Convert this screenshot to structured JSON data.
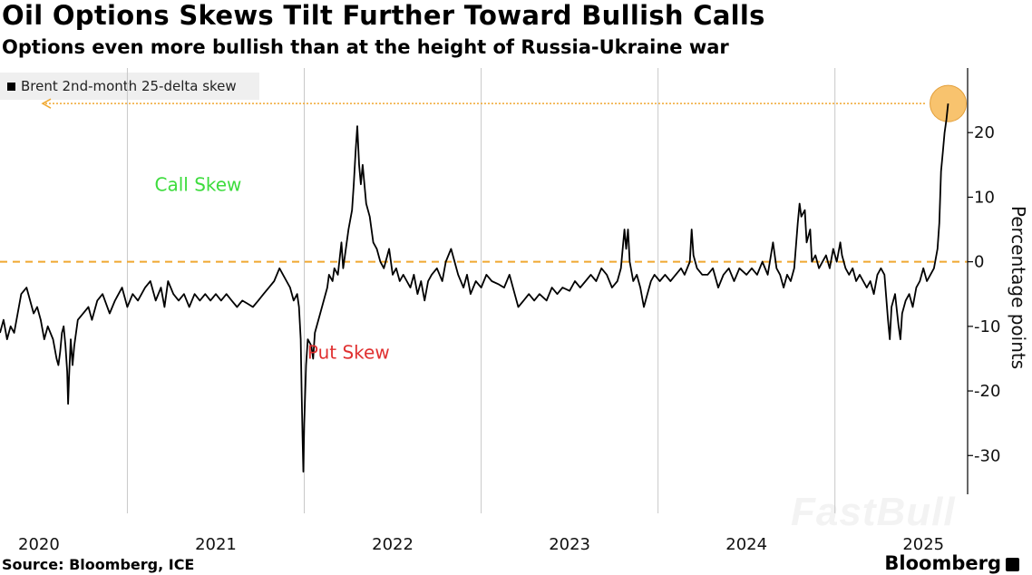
{
  "header": {
    "title": "Oil Options Skews Tilt Further Toward Bullish Calls",
    "subtitle": "Options even more bullish than at the height of Russia-Ukraine war"
  },
  "footer": {
    "source": "Source: Bloomberg, ICE",
    "brand": "Bloomberg"
  },
  "watermark": "FastBull",
  "colors": {
    "line": "#000000",
    "zero_line": "#f0a830",
    "highlight_circle": "#f7b955",
    "call_label": "#3ddc3d",
    "put_label": "#e03030",
    "grid": "#c8c8c8"
  },
  "chart_data": {
    "type": "line",
    "title": "Oil Options Skews Tilt Further Toward Bullish Calls",
    "subtitle": "Options even more bullish than at the height of Russia-Ukraine war",
    "xlabel": "",
    "ylabel": "Percentage points",
    "legend": "Brent 2nd-month 25-delta skew",
    "legend_position": "top-left",
    "xlim": [
      2019.78,
      2025.25
    ],
    "ylim": [
      -36,
      30
    ],
    "yticks": [
      20,
      10,
      0,
      -10,
      -20,
      -30
    ],
    "ytick_labels": [
      "20",
      "10",
      "0",
      "-10",
      "-20",
      "-30"
    ],
    "xticks": [
      2020,
      2021,
      2022,
      2023,
      2024,
      2025
    ],
    "xtick_labels": [
      "2020",
      "2021",
      "2022",
      "2023",
      "2024",
      "2025"
    ],
    "grid": "vertical",
    "reference_line": {
      "y": 0,
      "style": "dashed"
    },
    "annotations": [
      {
        "text": "Call Skew",
        "x": 2020.9,
        "y": 11,
        "color": "call"
      },
      {
        "text": "Put Skew",
        "x": 2021.75,
        "y": -15,
        "color": "put"
      },
      {
        "type": "highlight",
        "x": 2025.14,
        "y": 24.5
      }
    ],
    "series": [
      {
        "name": "Brent 2nd-month 25-delta skew",
        "points": [
          [
            2019.78,
            -11
          ],
          [
            2019.8,
            -9
          ],
          [
            2019.82,
            -12
          ],
          [
            2019.84,
            -10
          ],
          [
            2019.86,
            -11
          ],
          [
            2019.88,
            -8
          ],
          [
            2019.9,
            -5
          ],
          [
            2019.93,
            -4
          ],
          [
            2019.95,
            -6
          ],
          [
            2019.97,
            -8
          ],
          [
            2019.99,
            -7
          ],
          [
            2020.01,
            -9
          ],
          [
            2020.03,
            -12
          ],
          [
            2020.05,
            -10
          ],
          [
            2020.08,
            -12
          ],
          [
            2020.1,
            -15
          ],
          [
            2020.11,
            -16
          ],
          [
            2020.12,
            -14
          ],
          [
            2020.13,
            -11
          ],
          [
            2020.14,
            -10
          ],
          [
            2020.15,
            -13
          ],
          [
            2020.16,
            -17
          ],
          [
            2020.165,
            -22
          ],
          [
            2020.17,
            -18
          ],
          [
            2020.18,
            -12
          ],
          [
            2020.19,
            -16
          ],
          [
            2020.2,
            -13
          ],
          [
            2020.22,
            -9
          ],
          [
            2020.25,
            -8
          ],
          [
            2020.28,
            -7
          ],
          [
            2020.3,
            -9
          ],
          [
            2020.33,
            -6
          ],
          [
            2020.36,
            -5
          ],
          [
            2020.4,
            -8
          ],
          [
            2020.43,
            -6
          ],
          [
            2020.47,
            -4
          ],
          [
            2020.5,
            -7
          ],
          [
            2020.53,
            -5
          ],
          [
            2020.56,
            -6
          ],
          [
            2020.6,
            -4
          ],
          [
            2020.63,
            -3
          ],
          [
            2020.66,
            -6
          ],
          [
            2020.69,
            -4
          ],
          [
            2020.71,
            -7
          ],
          [
            2020.73,
            -3
          ],
          [
            2020.76,
            -5
          ],
          [
            2020.79,
            -6
          ],
          [
            2020.82,
            -5
          ],
          [
            2020.85,
            -7
          ],
          [
            2020.88,
            -5
          ],
          [
            2020.91,
            -6
          ],
          [
            2020.94,
            -5
          ],
          [
            2020.97,
            -6
          ],
          [
            2021.0,
            -5
          ],
          [
            2021.03,
            -6
          ],
          [
            2021.06,
            -5
          ],
          [
            2021.09,
            -6
          ],
          [
            2021.12,
            -7
          ],
          [
            2021.15,
            -6
          ],
          [
            2021.18,
            -6.5
          ],
          [
            2021.21,
            -7
          ],
          [
            2021.24,
            -6
          ],
          [
            2021.27,
            -5
          ],
          [
            2021.3,
            -4
          ],
          [
            2021.33,
            -3
          ],
          [
            2021.36,
            -1
          ],
          [
            2021.38,
            -2
          ],
          [
            2021.4,
            -3
          ],
          [
            2021.42,
            -4
          ],
          [
            2021.44,
            -6
          ],
          [
            2021.46,
            -5
          ],
          [
            2021.47,
            -7
          ],
          [
            2021.48,
            -12
          ],
          [
            2021.485,
            -20
          ],
          [
            2021.49,
            -27
          ],
          [
            2021.495,
            -32.5
          ],
          [
            2021.5,
            -25
          ],
          [
            2021.51,
            -16
          ],
          [
            2021.52,
            -12
          ],
          [
            2021.54,
            -13
          ],
          [
            2021.55,
            -15
          ],
          [
            2021.56,
            -11
          ],
          [
            2021.57,
            -10
          ],
          [
            2021.59,
            -8
          ],
          [
            2021.61,
            -6
          ],
          [
            2021.63,
            -4
          ],
          [
            2021.64,
            -2
          ],
          [
            2021.66,
            -3
          ],
          [
            2021.67,
            -1
          ],
          [
            2021.69,
            -2
          ],
          [
            2021.71,
            3
          ],
          [
            2021.72,
            -1
          ],
          [
            2021.73,
            1
          ],
          [
            2021.75,
            5
          ],
          [
            2021.77,
            8
          ],
          [
            2021.78,
            12
          ],
          [
            2021.79,
            17
          ],
          [
            2021.8,
            21
          ],
          [
            2021.81,
            15
          ],
          [
            2021.82,
            12
          ],
          [
            2021.83,
            15
          ],
          [
            2021.85,
            9
          ],
          [
            2021.87,
            7
          ],
          [
            2021.89,
            3
          ],
          [
            2021.91,
            2
          ],
          [
            2021.93,
            0
          ],
          [
            2021.95,
            -1
          ],
          [
            2021.97,
            1
          ],
          [
            2021.98,
            2
          ],
          [
            2022.0,
            -2
          ],
          [
            2022.02,
            -1
          ],
          [
            2022.04,
            -3
          ],
          [
            2022.06,
            -2
          ],
          [
            2022.08,
            -3
          ],
          [
            2022.1,
            -4
          ],
          [
            2022.12,
            -2
          ],
          [
            2022.14,
            -5
          ],
          [
            2022.16,
            -3
          ],
          [
            2022.18,
            -6
          ],
          [
            2022.2,
            -3
          ],
          [
            2022.22,
            -2
          ],
          [
            2022.25,
            -1
          ],
          [
            2022.28,
            -3
          ],
          [
            2022.3,
            0
          ],
          [
            2022.33,
            2
          ],
          [
            2022.35,
            0
          ],
          [
            2022.37,
            -2
          ],
          [
            2022.4,
            -4
          ],
          [
            2022.42,
            -2
          ],
          [
            2022.44,
            -5
          ],
          [
            2022.47,
            -3
          ],
          [
            2022.5,
            -4
          ],
          [
            2022.53,
            -2
          ],
          [
            2022.56,
            -3
          ],
          [
            2022.6,
            -3.5
          ],
          [
            2022.63,
            -4
          ],
          [
            2022.66,
            -2
          ],
          [
            2022.69,
            -5
          ],
          [
            2022.71,
            -7
          ],
          [
            2022.74,
            -6
          ],
          [
            2022.77,
            -5
          ],
          [
            2022.8,
            -6
          ],
          [
            2022.83,
            -5
          ],
          [
            2022.87,
            -6
          ],
          [
            2022.9,
            -4
          ],
          [
            2022.93,
            -5
          ],
          [
            2022.96,
            -4
          ],
          [
            2023.0,
            -4.5
          ],
          [
            2023.03,
            -3
          ],
          [
            2023.06,
            -4
          ],
          [
            2023.09,
            -3
          ],
          [
            2023.12,
            -2
          ],
          [
            2023.15,
            -3
          ],
          [
            2023.18,
            -1
          ],
          [
            2023.21,
            -2
          ],
          [
            2023.24,
            -4
          ],
          [
            2023.27,
            -3
          ],
          [
            2023.29,
            -1
          ],
          [
            2023.31,
            5
          ],
          [
            2023.32,
            2
          ],
          [
            2023.33,
            5
          ],
          [
            2023.34,
            0
          ],
          [
            2023.36,
            -3
          ],
          [
            2023.38,
            -2
          ],
          [
            2023.4,
            -4
          ],
          [
            2023.42,
            -7
          ],
          [
            2023.44,
            -5
          ],
          [
            2023.46,
            -3
          ],
          [
            2023.48,
            -2
          ],
          [
            2023.51,
            -3
          ],
          [
            2023.54,
            -2
          ],
          [
            2023.57,
            -3
          ],
          [
            2023.6,
            -2
          ],
          [
            2023.63,
            -1
          ],
          [
            2023.65,
            -2
          ],
          [
            2023.68,
            0
          ],
          [
            2023.69,
            5
          ],
          [
            2023.7,
            1
          ],
          [
            2023.72,
            -1
          ],
          [
            2023.75,
            -2
          ],
          [
            2023.78,
            -2
          ],
          [
            2023.81,
            -1
          ],
          [
            2023.84,
            -4
          ],
          [
            2023.87,
            -2
          ],
          [
            2023.9,
            -1
          ],
          [
            2023.93,
            -3
          ],
          [
            2023.96,
            -1
          ],
          [
            2024.0,
            -2
          ],
          [
            2024.03,
            -1
          ],
          [
            2024.06,
            -2
          ],
          [
            2024.09,
            0
          ],
          [
            2024.12,
            -2
          ],
          [
            2024.15,
            3
          ],
          [
            2024.17,
            -1
          ],
          [
            2024.19,
            -2
          ],
          [
            2024.21,
            -4
          ],
          [
            2024.23,
            -2
          ],
          [
            2024.25,
            -3
          ],
          [
            2024.27,
            -1
          ],
          [
            2024.29,
            6
          ],
          [
            2024.3,
            9
          ],
          [
            2024.31,
            7
          ],
          [
            2024.33,
            8
          ],
          [
            2024.34,
            3
          ],
          [
            2024.36,
            5
          ],
          [
            2024.37,
            0
          ],
          [
            2024.39,
            1
          ],
          [
            2024.41,
            -1
          ],
          [
            2024.43,
            0
          ],
          [
            2024.45,
            1
          ],
          [
            2024.47,
            -1
          ],
          [
            2024.49,
            2
          ],
          [
            2024.51,
            0
          ],
          [
            2024.53,
            3
          ],
          [
            2024.54,
            1
          ],
          [
            2024.56,
            -1
          ],
          [
            2024.58,
            -2
          ],
          [
            2024.6,
            -1
          ],
          [
            2024.62,
            -3
          ],
          [
            2024.64,
            -2
          ],
          [
            2024.66,
            -3
          ],
          [
            2024.68,
            -4
          ],
          [
            2024.7,
            -3
          ],
          [
            2024.72,
            -5
          ],
          [
            2024.74,
            -2
          ],
          [
            2024.76,
            -1
          ],
          [
            2024.78,
            -2
          ],
          [
            2024.8,
            -9
          ],
          [
            2024.81,
            -12
          ],
          [
            2024.82,
            -7
          ],
          [
            2024.84,
            -5
          ],
          [
            2024.86,
            -10
          ],
          [
            2024.87,
            -12
          ],
          [
            2024.88,
            -8
          ],
          [
            2024.9,
            -6
          ],
          [
            2024.92,
            -5
          ],
          [
            2024.94,
            -7
          ],
          [
            2024.96,
            -4
          ],
          [
            2024.98,
            -3
          ],
          [
            2025.0,
            -1
          ],
          [
            2025.02,
            -3
          ],
          [
            2025.04,
            -2
          ],
          [
            2025.06,
            -1
          ],
          [
            2025.08,
            2
          ],
          [
            2025.09,
            6
          ],
          [
            2025.1,
            14
          ],
          [
            2025.11,
            17
          ],
          [
            2025.12,
            20
          ],
          [
            2025.13,
            22
          ],
          [
            2025.14,
            24.5
          ]
        ]
      }
    ]
  }
}
